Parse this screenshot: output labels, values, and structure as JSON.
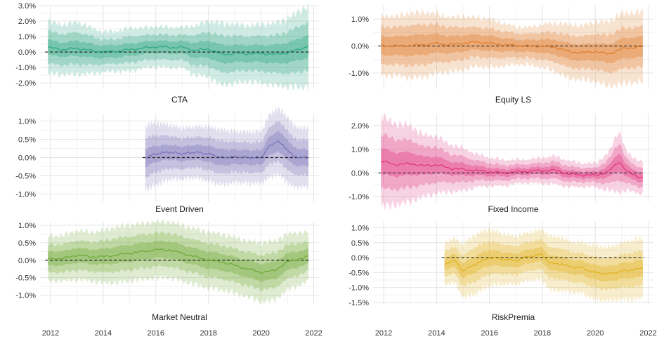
{
  "x_ticks": [
    "2012",
    "2014",
    "2016",
    "2018",
    "2020",
    "2022"
  ],
  "chart_data": [
    {
      "type": "area",
      "title": "CTA",
      "color": "#2aa57f",
      "xlim": [
        2011.6,
        2022.2
      ],
      "ylim": [
        -2.4,
        3.0
      ],
      "y_ticks": [
        -2.0,
        -1.0,
        0.0,
        1.0,
        2.0,
        3.0
      ],
      "y_tick_labels": [
        "-2.0%",
        "-1.0%",
        "0.0%",
        "1.0%",
        "2.0%",
        "3.0%"
      ],
      "zero_line": true,
      "x": [
        2011.9,
        2012.5,
        2013.0,
        2013.5,
        2014.0,
        2014.5,
        2015.0,
        2015.5,
        2016.0,
        2016.5,
        2017.0,
        2017.5,
        2018.0,
        2018.5,
        2019.0,
        2019.5,
        2020.0,
        2020.5,
        2021.0,
        2021.5,
        2021.8
      ],
      "median": [
        0.3,
        0.15,
        0.25,
        0.1,
        0.0,
        0.05,
        0.15,
        0.25,
        0.35,
        0.3,
        0.3,
        0.1,
        0.2,
        -0.15,
        -0.1,
        -0.1,
        -0.1,
        -0.15,
        -0.05,
        0.2,
        0.4
      ],
      "band_outer": [
        1.7,
        1.6,
        1.7,
        1.5,
        1.3,
        1.3,
        1.4,
        1.3,
        1.3,
        1.3,
        1.3,
        1.6,
        1.8,
        2.0,
        1.9,
        1.8,
        1.9,
        2.0,
        2.2,
        2.5,
        2.6
      ],
      "band_mid": [
        1.05,
        1.0,
        1.05,
        0.95,
        0.8,
        0.8,
        0.85,
        0.8,
        0.8,
        0.8,
        0.8,
        1.0,
        1.1,
        1.2,
        1.15,
        1.1,
        1.15,
        1.2,
        1.35,
        1.5,
        1.55
      ],
      "band_inner": [
        0.5,
        0.45,
        0.5,
        0.45,
        0.4,
        0.4,
        0.4,
        0.4,
        0.4,
        0.4,
        0.4,
        0.5,
        0.55,
        0.6,
        0.55,
        0.55,
        0.55,
        0.6,
        0.65,
        0.7,
        0.75
      ]
    },
    {
      "type": "area",
      "title": "Equity LS",
      "color": "#e07b2a",
      "xlim": [
        2011.6,
        2022.2
      ],
      "ylim": [
        -1.6,
        1.5
      ],
      "y_ticks": [
        -1.0,
        0.0,
        1.0
      ],
      "y_tick_labels": [
        "-1.0%",
        "0.0%",
        "1.0%"
      ],
      "zero_line": true,
      "x": [
        2011.9,
        2012.5,
        2013.0,
        2013.5,
        2014.0,
        2014.5,
        2015.0,
        2015.5,
        2016.0,
        2016.5,
        2017.0,
        2017.5,
        2018.0,
        2018.5,
        2019.0,
        2019.5,
        2020.0,
        2020.5,
        2021.0,
        2021.5,
        2021.8
      ],
      "median": [
        0.02,
        0.0,
        0.02,
        0.05,
        0.1,
        0.05,
        0.1,
        0.15,
        0.1,
        0.05,
        0.02,
        0.0,
        0.0,
        -0.05,
        -0.2,
        -0.25,
        -0.2,
        -0.3,
        -0.1,
        -0.05,
        -0.02
      ],
      "band_outer": [
        1.1,
        1.1,
        1.2,
        1.2,
        1.1,
        1.0,
        1.0,
        0.9,
        0.9,
        0.8,
        0.7,
        0.7,
        0.8,
        0.9,
        1.0,
        1.0,
        1.1,
        1.2,
        1.3,
        1.3,
        1.3
      ],
      "band_mid": [
        0.7,
        0.7,
        0.75,
        0.75,
        0.7,
        0.65,
        0.6,
        0.55,
        0.55,
        0.5,
        0.45,
        0.45,
        0.5,
        0.55,
        0.6,
        0.6,
        0.65,
        0.7,
        0.75,
        0.75,
        0.75
      ],
      "band_inner": [
        0.35,
        0.35,
        0.38,
        0.38,
        0.35,
        0.32,
        0.3,
        0.28,
        0.28,
        0.25,
        0.22,
        0.22,
        0.25,
        0.28,
        0.3,
        0.3,
        0.32,
        0.35,
        0.38,
        0.38,
        0.38
      ]
    },
    {
      "type": "area",
      "title": "Event Driven",
      "color": "#7b72b6",
      "xlim": [
        2011.6,
        2022.2
      ],
      "ylim": [
        -1.2,
        1.2
      ],
      "y_ticks": [
        -1.0,
        -0.5,
        0.0,
        0.5,
        1.0
      ],
      "y_tick_labels": [
        "-1.0%",
        "-0.5%",
        "0.0%",
        "0.5%",
        "1.0%"
      ],
      "zero_line": true,
      "x": [
        2015.6,
        2016.0,
        2016.5,
        2017.0,
        2017.5,
        2018.0,
        2018.5,
        2019.0,
        2019.5,
        2020.0,
        2020.3,
        2020.6,
        2020.9,
        2021.2,
        2021.5,
        2021.8
      ],
      "median": [
        0.0,
        0.1,
        0.15,
        0.1,
        0.15,
        0.1,
        0.0,
        0.02,
        0.0,
        0.0,
        0.3,
        0.45,
        0.3,
        0.05,
        0.0,
        0.0
      ],
      "band_outer": [
        0.9,
        0.85,
        0.75,
        0.7,
        0.7,
        0.75,
        0.75,
        0.7,
        0.7,
        0.7,
        0.85,
        0.9,
        0.9,
        0.85,
        0.8,
        0.8
      ],
      "band_mid": [
        0.55,
        0.5,
        0.45,
        0.42,
        0.42,
        0.45,
        0.45,
        0.42,
        0.42,
        0.42,
        0.5,
        0.55,
        0.55,
        0.5,
        0.48,
        0.48
      ],
      "band_inner": [
        0.25,
        0.22,
        0.2,
        0.2,
        0.2,
        0.22,
        0.22,
        0.2,
        0.2,
        0.2,
        0.25,
        0.28,
        0.28,
        0.25,
        0.22,
        0.22
      ]
    },
    {
      "type": "area",
      "title": "Fixed Income",
      "color": "#e0357f",
      "xlim": [
        2011.6,
        2022.2
      ],
      "ylim": [
        -1.2,
        2.5
      ],
      "y_ticks": [
        -1.0,
        0.0,
        1.0,
        2.0
      ],
      "y_tick_labels": [
        "-1.0%",
        "0.0%",
        "1.0%",
        "2.0%"
      ],
      "zero_line": true,
      "x": [
        2011.9,
        2012.5,
        2013.0,
        2013.5,
        2014.0,
        2014.5,
        2015.0,
        2015.5,
        2016.0,
        2016.5,
        2017.0,
        2017.5,
        2018.0,
        2018.5,
        2019.0,
        2019.5,
        2020.0,
        2020.5,
        2020.9,
        2021.2,
        2021.5,
        2021.8
      ],
      "median": [
        0.5,
        0.35,
        0.4,
        0.3,
        0.35,
        0.2,
        0.15,
        0.1,
        0.05,
        0.0,
        0.05,
        0.08,
        0.1,
        0.12,
        -0.05,
        -0.08,
        -0.1,
        0.05,
        0.5,
        0.05,
        -0.1,
        -0.2
      ],
      "band_outer": [
        1.9,
        1.7,
        1.6,
        1.3,
        1.2,
        1.0,
        0.9,
        0.7,
        0.6,
        0.55,
        0.5,
        0.5,
        0.55,
        0.6,
        0.55,
        0.5,
        0.5,
        0.8,
        1.3,
        0.8,
        0.7,
        0.7
      ],
      "band_mid": [
        1.15,
        1.05,
        1.0,
        0.8,
        0.75,
        0.6,
        0.55,
        0.42,
        0.36,
        0.33,
        0.3,
        0.3,
        0.33,
        0.36,
        0.33,
        0.3,
        0.3,
        0.5,
        0.8,
        0.5,
        0.42,
        0.42
      ],
      "band_inner": [
        0.55,
        0.5,
        0.48,
        0.38,
        0.35,
        0.28,
        0.26,
        0.2,
        0.17,
        0.15,
        0.14,
        0.14,
        0.15,
        0.17,
        0.15,
        0.14,
        0.14,
        0.24,
        0.38,
        0.24,
        0.2,
        0.2
      ]
    },
    {
      "type": "area",
      "title": "Market Neutral",
      "color": "#6ea934",
      "xlim": [
        2011.6,
        2022.2
      ],
      "ylim": [
        -1.25,
        1.1
      ],
      "y_ticks": [
        -1.0,
        -0.5,
        0.0,
        0.5,
        1.0
      ],
      "y_tick_labels": [
        "-1.0%",
        "-0.5%",
        "0.0%",
        "0.5%",
        "1.0%"
      ],
      "zero_line": true,
      "x": [
        2011.9,
        2012.5,
        2013.0,
        2013.5,
        2014.0,
        2014.5,
        2015.0,
        2015.5,
        2016.0,
        2016.5,
        2017.0,
        2017.5,
        2018.0,
        2018.5,
        2019.0,
        2019.5,
        2020.0,
        2020.5,
        2021.0,
        2021.5,
        2021.8
      ],
      "median": [
        0.05,
        0.05,
        0.15,
        0.1,
        0.1,
        0.15,
        0.2,
        0.25,
        0.3,
        0.3,
        0.2,
        0.1,
        0.0,
        -0.05,
        -0.15,
        -0.25,
        -0.35,
        -0.3,
        -0.05,
        0.05,
        0.1
      ],
      "band_outer": [
        0.65,
        0.65,
        0.7,
        0.7,
        0.75,
        0.8,
        0.8,
        0.8,
        0.8,
        0.8,
        0.8,
        0.8,
        0.8,
        0.8,
        0.8,
        0.8,
        0.85,
        0.85,
        0.8,
        0.75,
        0.7
      ],
      "band_mid": [
        0.4,
        0.4,
        0.42,
        0.42,
        0.45,
        0.48,
        0.48,
        0.48,
        0.48,
        0.48,
        0.48,
        0.48,
        0.48,
        0.48,
        0.48,
        0.48,
        0.5,
        0.5,
        0.48,
        0.45,
        0.42
      ],
      "band_inner": [
        0.2,
        0.2,
        0.21,
        0.21,
        0.22,
        0.24,
        0.24,
        0.24,
        0.24,
        0.24,
        0.24,
        0.24,
        0.24,
        0.24,
        0.24,
        0.24,
        0.25,
        0.25,
        0.24,
        0.22,
        0.21
      ]
    },
    {
      "type": "area",
      "title": "RiskPremia",
      "color": "#e1b21f",
      "xlim": [
        2011.6,
        2022.2
      ],
      "ylim": [
        -1.55,
        1.2
      ],
      "y_ticks": [
        -1.5,
        -1.0,
        -0.5,
        0.0,
        0.5,
        1.0
      ],
      "y_tick_labels": [
        "-1.5%",
        "-1.0%",
        "-0.5%",
        "0.0%",
        "0.5%",
        "1.0%"
      ],
      "zero_line": true,
      "x": [
        2014.3,
        2014.7,
        2015.0,
        2015.5,
        2016.0,
        2016.5,
        2017.0,
        2017.5,
        2018.0,
        2018.3,
        2018.7,
        2019.0,
        2019.5,
        2020.0,
        2020.5,
        2021.0,
        2021.5,
        2021.8
      ],
      "median": [
        -0.2,
        -0.1,
        -0.45,
        -0.2,
        0.0,
        -0.05,
        -0.1,
        0.05,
        0.1,
        -0.2,
        -0.2,
        -0.3,
        -0.35,
        -0.5,
        -0.55,
        -0.45,
        -0.4,
        -0.35
      ],
      "band_outer": [
        0.7,
        0.75,
        0.9,
        1.0,
        0.95,
        0.85,
        0.8,
        0.8,
        0.85,
        0.9,
        0.9,
        0.85,
        0.85,
        0.9,
        0.9,
        0.95,
        1.0,
        1.0
      ],
      "band_mid": [
        0.42,
        0.45,
        0.52,
        0.58,
        0.55,
        0.5,
        0.48,
        0.48,
        0.5,
        0.52,
        0.52,
        0.5,
        0.5,
        0.52,
        0.52,
        0.55,
        0.58,
        0.58
      ],
      "band_inner": [
        0.2,
        0.22,
        0.25,
        0.28,
        0.26,
        0.24,
        0.23,
        0.23,
        0.24,
        0.25,
        0.25,
        0.24,
        0.24,
        0.25,
        0.25,
        0.26,
        0.28,
        0.28
      ]
    }
  ]
}
